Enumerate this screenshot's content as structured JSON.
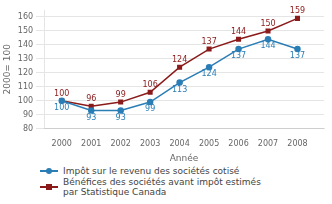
{
  "chart_data": {
    "type": "line",
    "x": [
      2000,
      2001,
      2002,
      2003,
      2004,
      2005,
      2006,
      2007,
      2008
    ],
    "xlim": [
      1999.4,
      2008.9
    ],
    "xticks": [
      2000,
      2001,
      2002,
      2003,
      2004,
      2005,
      2006,
      2007,
      2008
    ],
    "ylim": [
      80,
      165
    ],
    "yticks": [
      80,
      90,
      100,
      110,
      120,
      130,
      140,
      150,
      160
    ],
    "xlabel": "Année",
    "ylabel": "2000= 100",
    "series": [
      {
        "name": "Impôt sur le revenu des sociétés cotisé",
        "color": "#2a7db5",
        "marker": "circle",
        "values": [
          100,
          93,
          93,
          99,
          113,
          124,
          137,
          144,
          137
        ]
      },
      {
        "name": "Bénéfices des sociétés avant  impôt estimés\npar Statistique Canada",
        "color": "#8b1a1a",
        "marker": "square",
        "values": [
          100,
          96,
          99,
          106,
          124,
          137,
          144,
          150,
          159
        ]
      }
    ],
    "grid": "y",
    "legend": "bottom",
    "data_labels": true
  }
}
